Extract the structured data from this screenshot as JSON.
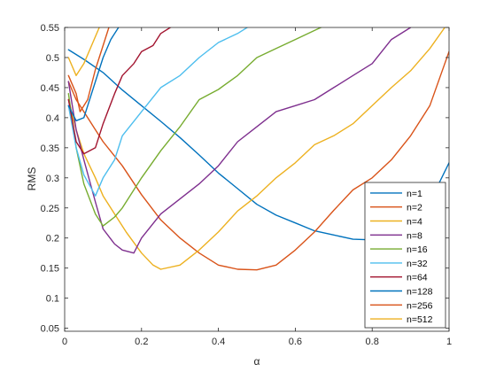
{
  "chart_data": {
    "type": "line",
    "title": "",
    "xlabel": "α",
    "ylabel": "RMS",
    "xlim": [
      0,
      1
    ],
    "ylim": [
      0.045,
      0.55
    ],
    "x_ticks": [
      "0",
      "0.2",
      "0.4",
      "0.6",
      "0.8",
      "1"
    ],
    "y_ticks": [
      "0.05",
      "0.1",
      "0.15",
      "0.2",
      "0.25",
      "0.3",
      "0.35",
      "0.4",
      "0.45",
      "0.5",
      "0.55"
    ],
    "grid": false,
    "legend_position": "bottom-right",
    "series": [
      {
        "name": "n=1",
        "color": "#0072BD",
        "points": [
          [
            0.01,
            0.513
          ],
          [
            0.05,
            0.497
          ],
          [
            0.1,
            0.475
          ],
          [
            0.15,
            0.446
          ],
          [
            0.2,
            0.42
          ],
          [
            0.25,
            0.394
          ],
          [
            0.3,
            0.367
          ],
          [
            0.35,
            0.338
          ],
          [
            0.4,
            0.308
          ],
          [
            0.45,
            0.282
          ],
          [
            0.5,
            0.256
          ],
          [
            0.55,
            0.238
          ],
          [
            0.6,
            0.225
          ],
          [
            0.65,
            0.212
          ],
          [
            0.7,
            0.205
          ],
          [
            0.75,
            0.198
          ],
          [
            0.8,
            0.197
          ],
          [
            0.85,
            0.205
          ],
          [
            0.9,
            0.222
          ],
          [
            0.95,
            0.26
          ],
          [
            1.0,
            0.325
          ]
        ]
      },
      {
        "name": "n=2",
        "color": "#D95319",
        "points": [
          [
            0.01,
            0.46
          ],
          [
            0.03,
            0.43
          ],
          [
            0.05,
            0.41
          ],
          [
            0.08,
            0.38
          ],
          [
            0.1,
            0.36
          ],
          [
            0.15,
            0.32
          ],
          [
            0.2,
            0.272
          ],
          [
            0.25,
            0.23
          ],
          [
            0.3,
            0.2
          ],
          [
            0.35,
            0.175
          ],
          [
            0.4,
            0.155
          ],
          [
            0.45,
            0.148
          ],
          [
            0.5,
            0.147
          ],
          [
            0.55,
            0.155
          ],
          [
            0.6,
            0.18
          ],
          [
            0.65,
            0.21
          ],
          [
            0.7,
            0.246
          ],
          [
            0.75,
            0.28
          ],
          [
            0.8,
            0.3
          ],
          [
            0.85,
            0.33
          ],
          [
            0.9,
            0.37
          ],
          [
            0.95,
            0.42
          ],
          [
            1.0,
            0.51
          ]
        ]
      },
      {
        "name": "n=4",
        "color": "#EDB120",
        "points": [
          [
            0.01,
            0.43
          ],
          [
            0.03,
            0.38
          ],
          [
            0.05,
            0.34
          ],
          [
            0.08,
            0.3
          ],
          [
            0.1,
            0.27
          ],
          [
            0.13,
            0.24
          ],
          [
            0.16,
            0.21
          ],
          [
            0.2,
            0.175
          ],
          [
            0.23,
            0.155
          ],
          [
            0.25,
            0.148
          ],
          [
            0.3,
            0.155
          ],
          [
            0.35,
            0.18
          ],
          [
            0.4,
            0.21
          ],
          [
            0.45,
            0.245
          ],
          [
            0.5,
            0.27
          ],
          [
            0.55,
            0.3
          ],
          [
            0.6,
            0.325
          ],
          [
            0.65,
            0.355
          ],
          [
            0.7,
            0.37
          ],
          [
            0.75,
            0.39
          ],
          [
            0.8,
            0.42
          ],
          [
            0.85,
            0.45
          ],
          [
            0.9,
            0.478
          ],
          [
            0.95,
            0.515
          ],
          [
            1.0,
            0.56
          ]
        ]
      },
      {
        "name": "n=8",
        "color": "#7E2F8E",
        "points": [
          [
            0.01,
            0.46
          ],
          [
            0.03,
            0.38
          ],
          [
            0.05,
            0.33
          ],
          [
            0.08,
            0.26
          ],
          [
            0.1,
            0.215
          ],
          [
            0.13,
            0.19
          ],
          [
            0.15,
            0.18
          ],
          [
            0.18,
            0.175
          ],
          [
            0.2,
            0.2
          ],
          [
            0.25,
            0.24
          ],
          [
            0.3,
            0.265
          ],
          [
            0.35,
            0.29
          ],
          [
            0.4,
            0.32
          ],
          [
            0.45,
            0.36
          ],
          [
            0.5,
            0.385
          ],
          [
            0.55,
            0.41
          ],
          [
            0.6,
            0.42
          ],
          [
            0.65,
            0.43
          ],
          [
            0.7,
            0.45
          ],
          [
            0.75,
            0.47
          ],
          [
            0.8,
            0.49
          ],
          [
            0.85,
            0.53
          ],
          [
            0.9,
            0.55
          ]
        ]
      },
      {
        "name": "n=16",
        "color": "#77AC30",
        "points": [
          [
            0.01,
            0.44
          ],
          [
            0.03,
            0.35
          ],
          [
            0.05,
            0.29
          ],
          [
            0.08,
            0.24
          ],
          [
            0.1,
            0.22
          ],
          [
            0.13,
            0.235
          ],
          [
            0.15,
            0.25
          ],
          [
            0.2,
            0.3
          ],
          [
            0.25,
            0.345
          ],
          [
            0.3,
            0.385
          ],
          [
            0.35,
            0.43
          ],
          [
            0.4,
            0.447
          ],
          [
            0.45,
            0.47
          ],
          [
            0.5,
            0.5
          ],
          [
            0.55,
            0.515
          ],
          [
            0.6,
            0.53
          ],
          [
            0.65,
            0.545
          ],
          [
            0.7,
            0.56
          ]
        ]
      },
      {
        "name": "n=32",
        "color": "#4DBEEE",
        "points": [
          [
            0.01,
            0.42
          ],
          [
            0.03,
            0.35
          ],
          [
            0.05,
            0.305
          ],
          [
            0.08,
            0.27
          ],
          [
            0.1,
            0.3
          ],
          [
            0.13,
            0.33
          ],
          [
            0.15,
            0.37
          ],
          [
            0.2,
            0.41
          ],
          [
            0.25,
            0.45
          ],
          [
            0.3,
            0.47
          ],
          [
            0.35,
            0.5
          ],
          [
            0.4,
            0.525
          ],
          [
            0.45,
            0.54
          ],
          [
            0.5,
            0.56
          ]
        ]
      },
      {
        "name": "n=64",
        "color": "#A2142F",
        "points": [
          [
            0.01,
            0.43
          ],
          [
            0.03,
            0.36
          ],
          [
            0.05,
            0.34
          ],
          [
            0.08,
            0.35
          ],
          [
            0.1,
            0.39
          ],
          [
            0.13,
            0.44
          ],
          [
            0.15,
            0.47
          ],
          [
            0.18,
            0.49
          ],
          [
            0.2,
            0.51
          ],
          [
            0.23,
            0.52
          ],
          [
            0.25,
            0.54
          ],
          [
            0.3,
            0.56
          ]
        ]
      },
      {
        "name": "n=128",
        "color": "#0072BD",
        "points": [
          [
            0.01,
            0.42
          ],
          [
            0.03,
            0.395
          ],
          [
            0.05,
            0.4
          ],
          [
            0.08,
            0.46
          ],
          [
            0.1,
            0.5
          ],
          [
            0.12,
            0.53
          ],
          [
            0.14,
            0.55
          ],
          [
            0.16,
            0.56
          ]
        ]
      },
      {
        "name": "n=256",
        "color": "#D95319",
        "points": [
          [
            0.01,
            0.47
          ],
          [
            0.03,
            0.44
          ],
          [
            0.04,
            0.41
          ],
          [
            0.06,
            0.43
          ],
          [
            0.08,
            0.48
          ],
          [
            0.1,
            0.52
          ],
          [
            0.12,
            0.56
          ]
        ]
      },
      {
        "name": "n=512",
        "color": "#EDB120",
        "points": [
          [
            0.01,
            0.5
          ],
          [
            0.03,
            0.47
          ],
          [
            0.05,
            0.49
          ],
          [
            0.07,
            0.52
          ],
          [
            0.09,
            0.55
          ],
          [
            0.1,
            0.56
          ]
        ]
      }
    ]
  }
}
